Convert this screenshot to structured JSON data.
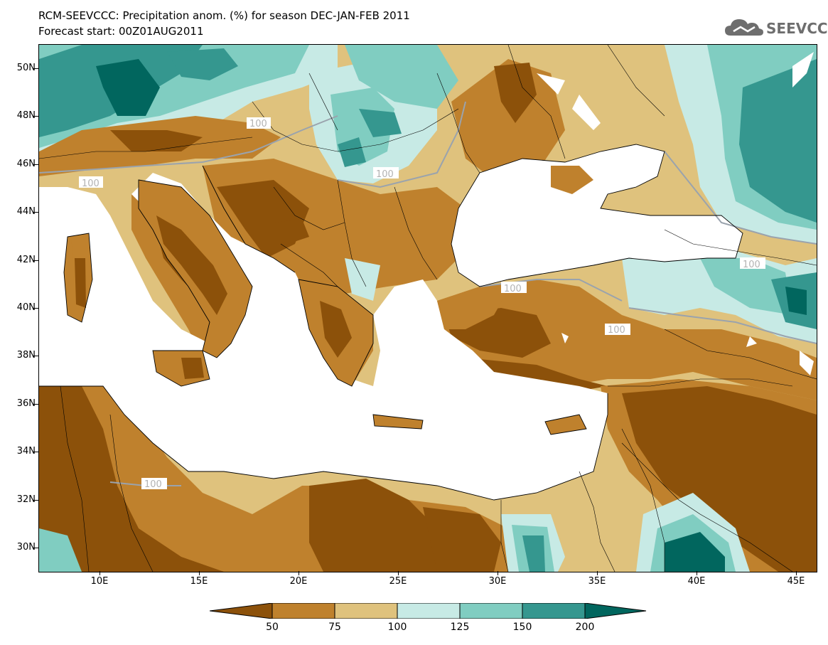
{
  "header": {
    "title": "RCM-SEEVCCC: Precipitation anom. (%) for season DEC-JAN-FEB 2011",
    "subtitle": "Forecast start: 00Z01AUG2011",
    "logo_text": "SEEVCCC"
  },
  "axes": {
    "lat_labels": [
      "50N",
      "48N",
      "46N",
      "44N",
      "42N",
      "40N",
      "38N",
      "36N",
      "34N",
      "32N",
      "30N"
    ],
    "lon_labels": [
      "10E",
      "15E",
      "20E",
      "25E",
      "30E",
      "35E",
      "40E",
      "45E"
    ]
  },
  "contour_labels": [
    "100",
    "100",
    "100",
    "100",
    "100",
    "100",
    "100",
    "100"
  ],
  "legend": {
    "labels": [
      "50",
      "75",
      "100",
      "125",
      "150",
      "200"
    ],
    "colors": [
      "#8c510a",
      "#bf812d",
      "#dfc27d",
      "#c7eae5",
      "#80cdc1",
      "#35978f",
      "#01665e"
    ]
  },
  "colors": {
    "sea": "#ffffff",
    "class_lt50": "#8c510a",
    "class_50_75": "#bf812d",
    "class_75_100": "#dfc27d",
    "class_100_125": "#c7eae5",
    "class_125_150": "#80cdc1",
    "class_150_200": "#35978f",
    "class_gt200": "#01665e",
    "contour": "#9aa3ad"
  }
}
